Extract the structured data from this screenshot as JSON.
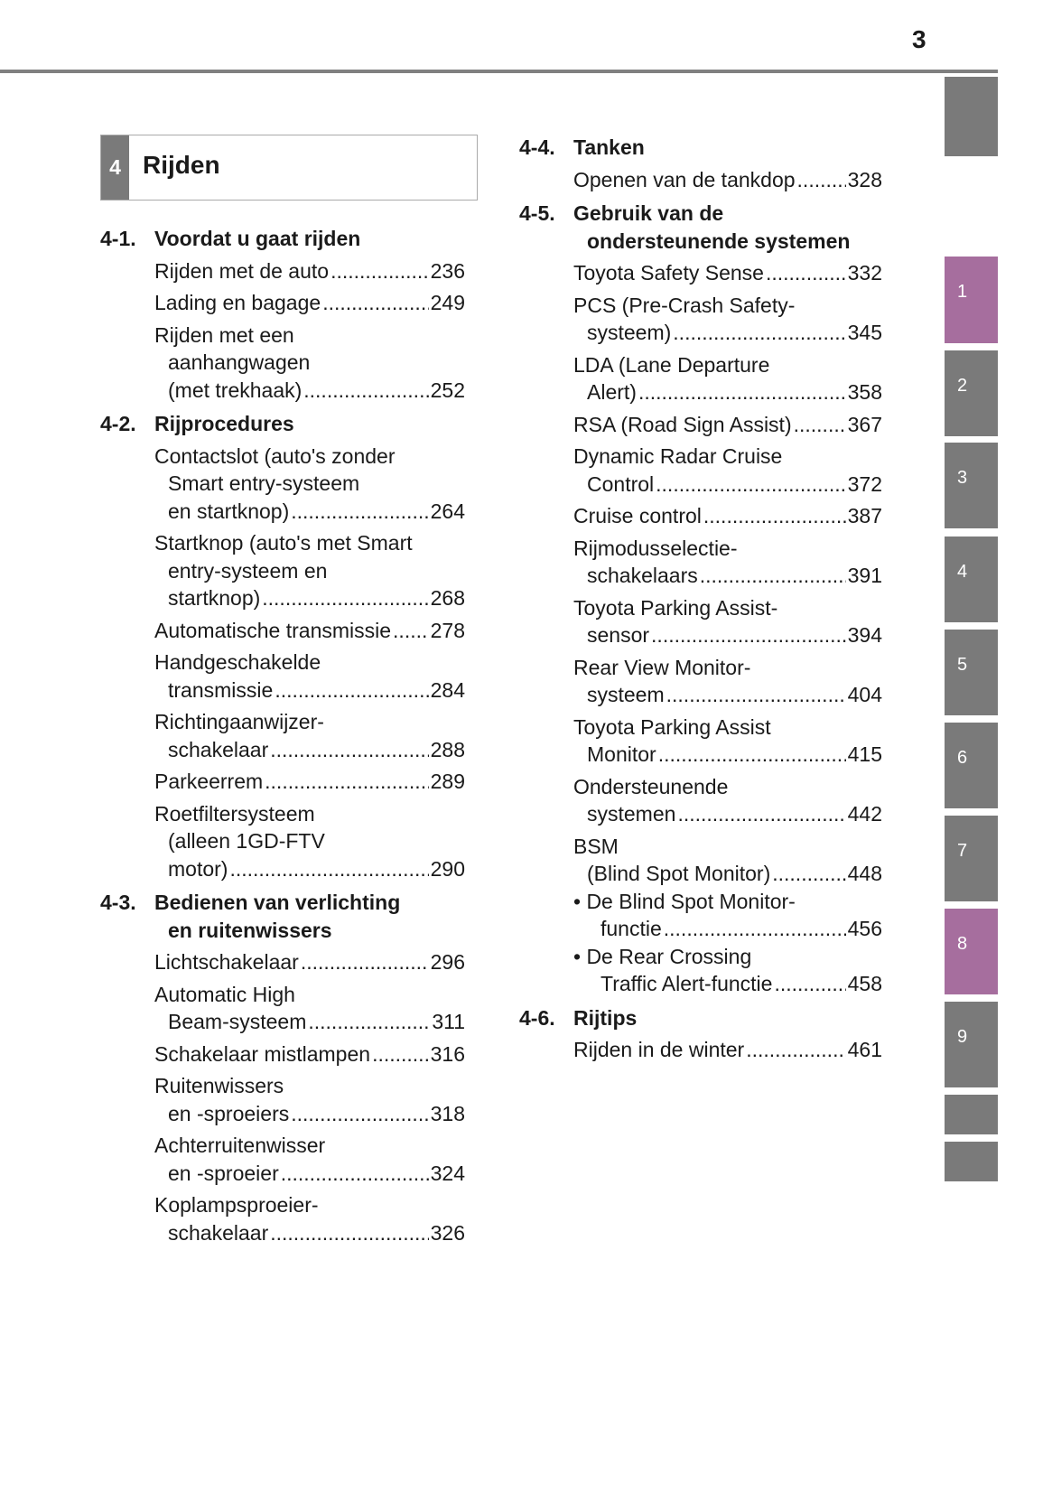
{
  "page_number": "3",
  "chapter": {
    "number": "4",
    "title": "Rijden"
  },
  "colors": {
    "tab_gray": "#7a7a7a",
    "tab_purple": "#a66e9e"
  },
  "tabs": [
    {
      "label": "",
      "color": "#7a7a7a"
    },
    {
      "label": "1",
      "color": "#a66e9e"
    },
    {
      "label": "2",
      "color": "#7a7a7a"
    },
    {
      "label": "3",
      "color": "#7a7a7a"
    },
    {
      "label": "4",
      "color": "#7a7a7a"
    },
    {
      "label": "5",
      "color": "#7a7a7a"
    },
    {
      "label": "6",
      "color": "#7a7a7a"
    },
    {
      "label": "7",
      "color": "#7a7a7a"
    },
    {
      "label": "8",
      "color": "#a66e9e"
    },
    {
      "label": "9",
      "color": "#7a7a7a"
    },
    {
      "label": "",
      "color": "#7a7a7a"
    },
    {
      "label": "",
      "color": "#7a7a7a"
    }
  ],
  "columns": [
    [
      {
        "number": "4-1.",
        "title": [
          "Voordat u gaat rijden"
        ],
        "entries": [
          {
            "lines": [
              "Rijden met de auto"
            ],
            "page": "236"
          },
          {
            "lines": [
              "Lading en bagage"
            ],
            "page": "249"
          },
          {
            "lines": [
              "Rijden met een",
              "aanhangwagen",
              "(met trekhaak)"
            ],
            "page": "252"
          }
        ]
      },
      {
        "number": "4-2.",
        "title": [
          "Rijprocedures"
        ],
        "entries": [
          {
            "lines": [
              "Contactslot (auto's zonder",
              "Smart entry-systeem",
              "en startknop)"
            ],
            "page": "264"
          },
          {
            "lines": [
              "Startknop (auto's met Smart",
              "entry-systeem en",
              "startknop)"
            ],
            "page": "268"
          },
          {
            "lines": [
              "Automatische transmissie"
            ],
            "page": "278"
          },
          {
            "lines": [
              "Handgeschakelde",
              "transmissie"
            ],
            "page": "284"
          },
          {
            "lines": [
              "Richtingaanwijzer-",
              "schakelaar"
            ],
            "page": "288"
          },
          {
            "lines": [
              "Parkeerrem"
            ],
            "page": "289"
          },
          {
            "lines": [
              "Roetfiltersysteem",
              "(alleen 1GD-FTV",
              "motor)"
            ],
            "page": "290"
          }
        ]
      },
      {
        "number": "4-3.",
        "title": [
          "Bedienen van verlichting",
          "en ruitenwissers"
        ],
        "entries": [
          {
            "lines": [
              "Lichtschakelaar"
            ],
            "page": "296"
          },
          {
            "lines": [
              "Automatic High",
              "Beam-systeem"
            ],
            "page": "311"
          },
          {
            "lines": [
              "Schakelaar mistlampen"
            ],
            "page": "316"
          },
          {
            "lines": [
              "Ruitenwissers",
              "en -sproeiers"
            ],
            "page": "318"
          },
          {
            "lines": [
              "Achterruitenwisser",
              "en -sproeier"
            ],
            "page": "324"
          },
          {
            "lines": [
              "Koplampsproeier-",
              "schakelaar"
            ],
            "page": "326"
          }
        ]
      }
    ],
    [
      {
        "number": "4-4.",
        "title": [
          "Tanken"
        ],
        "entries": [
          {
            "lines": [
              "Openen van de tankdop"
            ],
            "page": "328"
          }
        ]
      },
      {
        "number": "4-5.",
        "title": [
          "Gebruik van de",
          "ondersteunende systemen"
        ],
        "entries": [
          {
            "lines": [
              "Toyota Safety Sense"
            ],
            "page": "332"
          },
          {
            "lines": [
              "PCS (Pre-Crash Safety-",
              "systeem)"
            ],
            "page": "345"
          },
          {
            "lines": [
              "LDA (Lane Departure",
              "Alert)"
            ],
            "page": "358"
          },
          {
            "lines": [
              "RSA (Road Sign Assist)"
            ],
            "page": "367"
          },
          {
            "lines": [
              "Dynamic Radar Cruise",
              "Control"
            ],
            "page": "372"
          },
          {
            "lines": [
              "Cruise control"
            ],
            "page": "387"
          },
          {
            "lines": [
              "Rijmodusselectie-",
              "schakelaars"
            ],
            "page": "391"
          },
          {
            "lines": [
              "Toyota Parking Assist-",
              "sensor"
            ],
            "page": "394"
          },
          {
            "lines": [
              "Rear View Monitor-",
              "systeem"
            ],
            "page": "404"
          },
          {
            "lines": [
              "Toyota Parking Assist",
              "Monitor"
            ],
            "page": "415"
          },
          {
            "lines": [
              "Ondersteunende",
              "systemen"
            ],
            "page": "442"
          },
          {
            "lines": [
              "BSM",
              "(Blind Spot Monitor)"
            ],
            "page": "448"
          },
          {
            "lines": [
              "• De Blind Spot Monitor-",
              "functie"
            ],
            "page": "456",
            "bullet": true
          },
          {
            "lines": [
              "• De Rear Crossing",
              "Traffic Alert-functie"
            ],
            "page": "458",
            "bullet": true
          }
        ]
      },
      {
        "number": "4-6.",
        "title": [
          "Rijtips"
        ],
        "entries": [
          {
            "lines": [
              "Rijden in de winter"
            ],
            "page": "461"
          }
        ]
      }
    ]
  ]
}
